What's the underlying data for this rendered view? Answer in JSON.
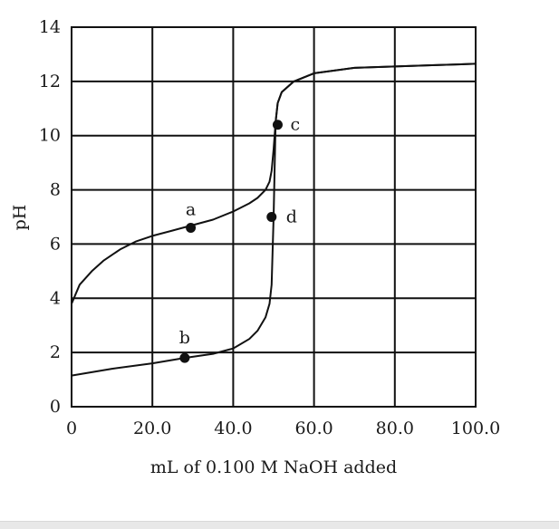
{
  "chart_data": {
    "type": "line",
    "xlabel": "mL of 0.100 M NaOH added",
    "ylabel": "pH",
    "xlim": [
      0,
      100
    ],
    "ylim": [
      0,
      14
    ],
    "x_tick_labels": [
      "0",
      "20.0",
      "40.0",
      "60.0",
      "80.0",
      "100.0"
    ],
    "y_tick_labels": [
      "0",
      "2",
      "4",
      "6",
      "8",
      "10",
      "12",
      "14"
    ],
    "grid": true,
    "series": [
      {
        "x": [
          0,
          2,
          5,
          8,
          12,
          16,
          20,
          25,
          30,
          35,
          40,
          44,
          46,
          48,
          49,
          49.5,
          50,
          50.5,
          51,
          52,
          55,
          60,
          70,
          80,
          90,
          100
        ],
        "y": [
          3.8,
          4.5,
          5.0,
          5.4,
          5.8,
          6.1,
          6.3,
          6.5,
          6.7,
          6.9,
          7.2,
          7.5,
          7.7,
          8.0,
          8.3,
          8.7,
          9.5,
          10.5,
          11.2,
          11.6,
          12.0,
          12.3,
          12.5,
          12.55,
          12.6,
          12.65
        ]
      },
      {
        "x": [
          0,
          10,
          20,
          28,
          35,
          40,
          44,
          46,
          48,
          49,
          49.5,
          50,
          50.5,
          51,
          52,
          55,
          60,
          70,
          80,
          90,
          100
        ],
        "y": [
          1.15,
          1.4,
          1.6,
          1.8,
          1.95,
          2.15,
          2.5,
          2.8,
          3.3,
          3.8,
          4.5,
          7.0,
          10.5,
          11.2,
          11.6,
          12.0,
          12.3,
          12.5,
          12.55,
          12.6,
          12.65
        ]
      }
    ],
    "points": [
      {
        "label": "a",
        "x": 29.5,
        "y": 6.6
      },
      {
        "label": "b",
        "x": 28.0,
        "y": 1.8
      },
      {
        "label": "c",
        "x": 51.0,
        "y": 10.4
      },
      {
        "label": "d",
        "x": 49.5,
        "y": 7.0
      }
    ]
  }
}
